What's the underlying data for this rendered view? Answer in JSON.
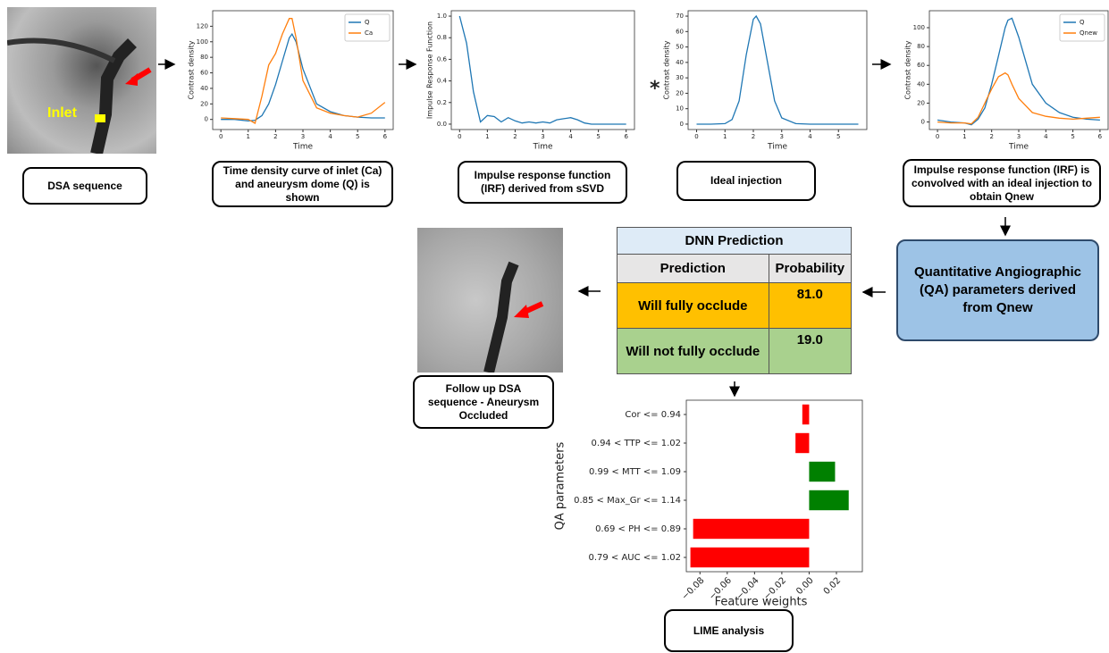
{
  "image_labels": {
    "inlet": "Inlet"
  },
  "operator": "*",
  "captions": {
    "dsa": "DSA sequence",
    "tdc": "Time density curve of inlet (Ca) and aneurysm dome (Q) is shown",
    "irf": "Impulse response function (IRF) derived from sSVD",
    "ideal": "Ideal injection",
    "conv": "Impulse response function (IRF) is convolved with an ideal injection to obtain Qnew",
    "qa": "Quantitative Angiographic (QA) parameters derived from Qnew",
    "followup": "Follow up DSA sequence - Aneurysm Occluded",
    "lime": "LIME analysis"
  },
  "table": {
    "title": "DNN Prediction",
    "header": [
      "Prediction",
      "Probability"
    ],
    "rows": [
      [
        "Will fully occlude",
        "81.0"
      ],
      [
        "Will not fully occlude",
        "19.0"
      ]
    ]
  },
  "chart_data": [
    {
      "type": "line",
      "xlabel": "Time",
      "ylabel": "Contrast density",
      "x": [
        0,
        0.5,
        1,
        1.25,
        1.5,
        1.75,
        2,
        2.25,
        2.5,
        2.6,
        2.75,
        3,
        3.5,
        4,
        4.5,
        5,
        5.5,
        6
      ],
      "series": [
        {
          "name": "Q",
          "color": "#1f77b4",
          "values": [
            0,
            0,
            -2,
            -1,
            5,
            20,
            45,
            75,
            105,
            110,
            100,
            65,
            20,
            10,
            5,
            3,
            2,
            2
          ]
        },
        {
          "name": "Ca",
          "color": "#ff7f0e",
          "values": [
            2,
            1,
            0,
            -5,
            30,
            70,
            85,
            110,
            130,
            130,
            105,
            50,
            15,
            8,
            5,
            3,
            8,
            22
          ]
        }
      ],
      "xlim": [
        -0.3,
        6.3
      ],
      "ylim": [
        -13,
        140
      ],
      "xticks": [
        0,
        1,
        2,
        3,
        4,
        5,
        6
      ],
      "yticks": [
        0,
        20,
        40,
        60,
        80,
        100,
        120
      ],
      "legend": "upper right"
    },
    {
      "type": "line",
      "xlabel": "Time",
      "ylabel": "Impulse Response Function",
      "x": [
        0,
        0.25,
        0.5,
        0.75,
        1,
        1.25,
        1.5,
        1.75,
        2,
        2.25,
        2.5,
        2.75,
        3,
        3.25,
        3.5,
        3.75,
        4,
        4.25,
        4.5,
        4.75,
        5,
        5.25,
        5.5,
        5.75,
        6
      ],
      "values": [
        1.0,
        0.75,
        0.3,
        0.02,
        0.08,
        0.07,
        0.02,
        0.06,
        0.03,
        0.01,
        0.02,
        0.01,
        0.02,
        0.01,
        0.04,
        0.05,
        0.06,
        0.04,
        0.01,
        0,
        0,
        0,
        0,
        0,
        0
      ],
      "color": "#1f77b4",
      "xlim": [
        -0.3,
        6.3
      ],
      "ylim": [
        -0.05,
        1.05
      ],
      "xticks": [
        0,
        1,
        2,
        3,
        4,
        5,
        6
      ],
      "yticks": [
        {
          "value": 0,
          "label": "0.0"
        },
        {
          "value": 0.2,
          "label": "0.2"
        },
        {
          "value": 0.4,
          "label": "0.4"
        },
        {
          "value": 0.6,
          "label": "0.6"
        },
        {
          "value": 0.8,
          "label": "0.8"
        },
        {
          "value": 1,
          "label": "1.0"
        }
      ]
    },
    {
      "type": "line",
      "xlabel": "Time",
      "ylabel": "Contrast density",
      "x": [
        0,
        0.5,
        1,
        1.25,
        1.5,
        1.75,
        2,
        2.1,
        2.25,
        2.5,
        2.75,
        3,
        3.5,
        4,
        5,
        5.7
      ],
      "values": [
        0,
        0,
        0.3,
        3,
        15,
        45,
        68,
        70,
        65,
        40,
        15,
        4,
        0.3,
        0,
        0,
        0
      ],
      "color": "#1f77b4",
      "xlim": [
        -0.3,
        6.0
      ],
      "ylim": [
        -3.5,
        73.5
      ],
      "xticks": [
        0,
        1,
        2,
        3,
        4,
        5
      ],
      "yticks": [
        0,
        10,
        20,
        30,
        40,
        50,
        60,
        70
      ]
    },
    {
      "type": "line",
      "xlabel": "Time",
      "ylabel": "Contrast density",
      "x": [
        0,
        0.5,
        1,
        1.25,
        1.5,
        1.75,
        2,
        2.25,
        2.5,
        2.6,
        2.75,
        3,
        3.5,
        4,
        4.5,
        5,
        5.5,
        6
      ],
      "series": [
        {
          "name": "Q",
          "color": "#1f77b4",
          "values": [
            2,
            0,
            -1,
            -3,
            3,
            15,
            40,
            70,
            100,
            108,
            110,
            90,
            40,
            20,
            10,
            5,
            3,
            2
          ]
        },
        {
          "name": "Qnew",
          "color": "#ff7f0e",
          "values": [
            0,
            -1,
            -1,
            -2,
            5,
            20,
            35,
            48,
            52,
            50,
            40,
            25,
            10,
            6,
            4,
            3,
            4,
            5
          ]
        }
      ],
      "xlim": [
        -0.3,
        6.3
      ],
      "ylim": [
        -8,
        118
      ],
      "xticks": [
        0,
        1,
        2,
        3,
        4,
        5,
        6
      ],
      "yticks": [
        0,
        20,
        40,
        60,
        80,
        100
      ],
      "legend": "upper right"
    },
    {
      "type": "barh",
      "xlabel": "Feature weights",
      "ylabel": "QA parameters",
      "categories": [
        "Cor <= 0.94",
        "0.94 < TTP <= 1.02",
        "0.99 < MTT <= 1.09",
        "0.85 < Max_Gr <= 1.14",
        "0.69 < PH <= 0.89",
        "0.79 < AUC <= 1.02"
      ],
      "values": [
        -0.005,
        -0.01,
        0.019,
        0.029,
        -0.085,
        -0.087
      ],
      "colors": [
        "#ff0000",
        "#ff0000",
        "#008000",
        "#008000",
        "#ff0000",
        "#ff0000"
      ],
      "xlim": [
        -0.09,
        0.039
      ],
      "xticks": [
        {
          "value": -0.08,
          "label": "−0.08"
        },
        {
          "value": -0.06,
          "label": "−0.06"
        },
        {
          "value": -0.04,
          "label": "−0.04"
        },
        {
          "value": -0.02,
          "label": "−0.02"
        },
        {
          "value": 0,
          "label": "0.00"
        },
        {
          "value": 0.02,
          "label": "0.02"
        }
      ]
    }
  ]
}
